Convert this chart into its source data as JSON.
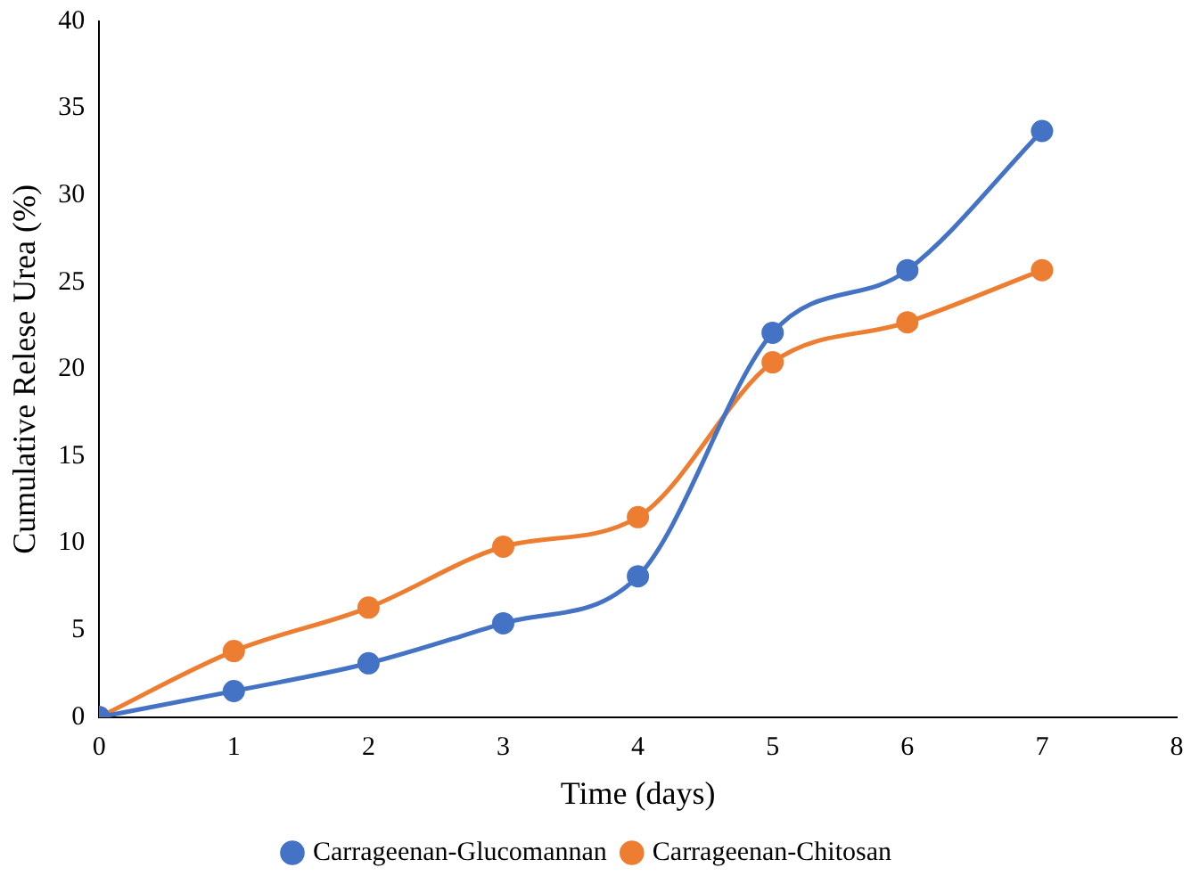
{
  "chart_data": {
    "type": "line",
    "xlabel": "Time (days)",
    "ylabel": "Cumulative Relese Urea (%)",
    "x": [
      0,
      1,
      2,
      3,
      4,
      5,
      6,
      7
    ],
    "series": [
      {
        "name": "Carrageenan-Glucomannan",
        "color": "#4472c4",
        "values": [
          0,
          1.5,
          3.1,
          5.4,
          8.1,
          22.1,
          25.7,
          33.7
        ]
      },
      {
        "name": "Carrageenan-Chitosan",
        "color": "#ed7d31",
        "values": [
          0,
          3.8,
          6.3,
          9.8,
          11.5,
          20.4,
          22.7,
          25.7
        ]
      }
    ],
    "xlim": [
      0,
      8
    ],
    "xticks": [
      0,
      1,
      2,
      3,
      4,
      5,
      6,
      7,
      8
    ],
    "ylim": [
      0,
      40
    ],
    "yticks": [
      0,
      5,
      10,
      15,
      20,
      25,
      30,
      35,
      40
    ],
    "grid": false,
    "legend": "bottom",
    "marker": "circle",
    "line_style": "solid"
  }
}
